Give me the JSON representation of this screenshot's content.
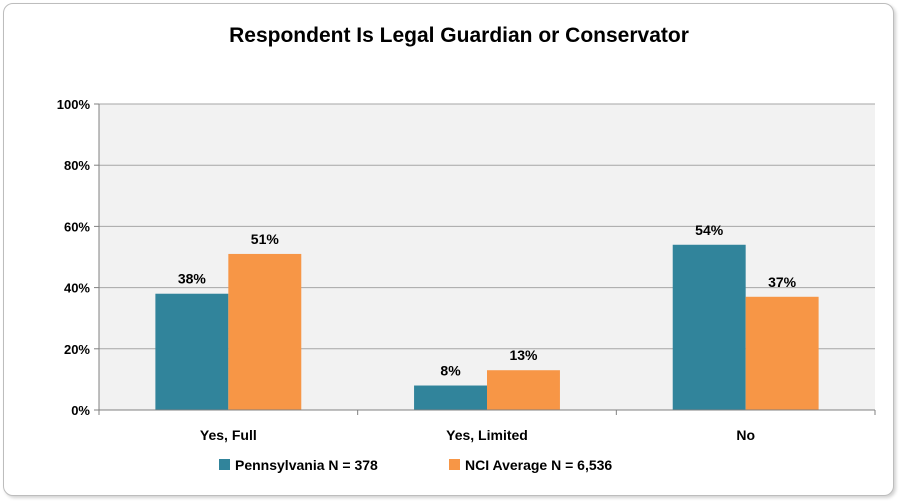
{
  "chart_data": {
    "type": "bar",
    "title": "Respondent Is Legal Guardian or Conservator",
    "categories": [
      "Yes, Full",
      "Yes, Limited",
      "No"
    ],
    "series": [
      {
        "name": "Pennsylvania N = 378",
        "values": [
          38,
          8,
          54
        ],
        "labels": [
          "38%",
          "8%",
          "54%"
        ],
        "color": "#31849b"
      },
      {
        "name": "NCI Average N = 6,536",
        "values": [
          51,
          13,
          37
        ],
        "labels": [
          "51%",
          "13%",
          "37%"
        ],
        "color": "#f79646"
      }
    ],
    "ylim": [
      0,
      100
    ],
    "yticks": [
      0,
      20,
      40,
      60,
      80,
      100
    ],
    "ytick_labels": [
      "0%",
      "20%",
      "40%",
      "60%",
      "80%",
      "100%"
    ],
    "grid": true,
    "legend_position": "bottom",
    "plot_background": "#f2f2f2",
    "xlabel": "",
    "ylabel": ""
  }
}
